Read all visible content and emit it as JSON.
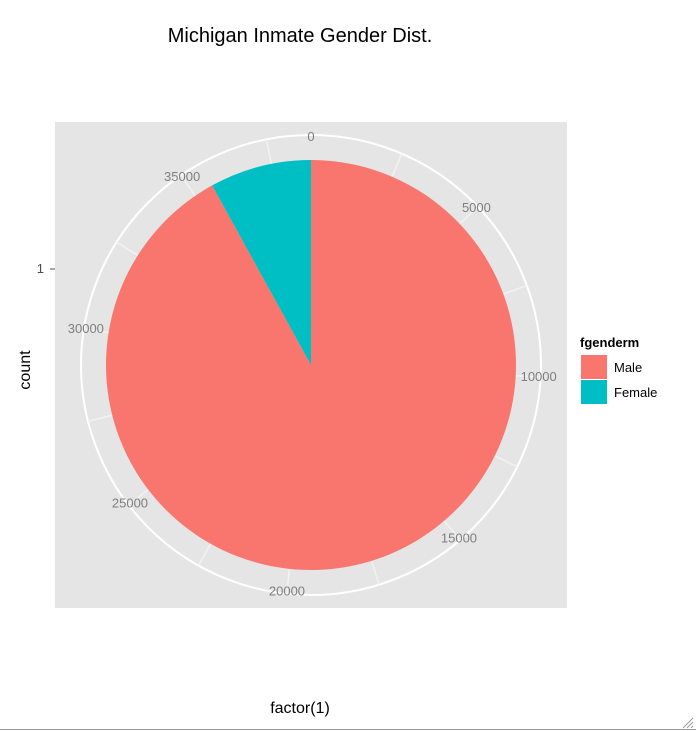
{
  "chart_data": {
    "type": "pie",
    "title": "Michigan Inmate Gender Dist.",
    "xlabel": "factor(1)",
    "ylabel": "count",
    "y_tick_labels": [
      "1"
    ],
    "radial_ticks": [
      0,
      5000,
      10000,
      15000,
      20000,
      25000,
      30000,
      35000
    ],
    "total": 38700,
    "legend": {
      "title": "fgenderm",
      "position": "right"
    },
    "slices": [
      {
        "label": "Male",
        "value": 35600,
        "color": "#F8766D"
      },
      {
        "label": "Female",
        "value": 3100,
        "color": "#00BFC4"
      }
    ],
    "panel_background": "#E5E5E5",
    "grid": true
  }
}
